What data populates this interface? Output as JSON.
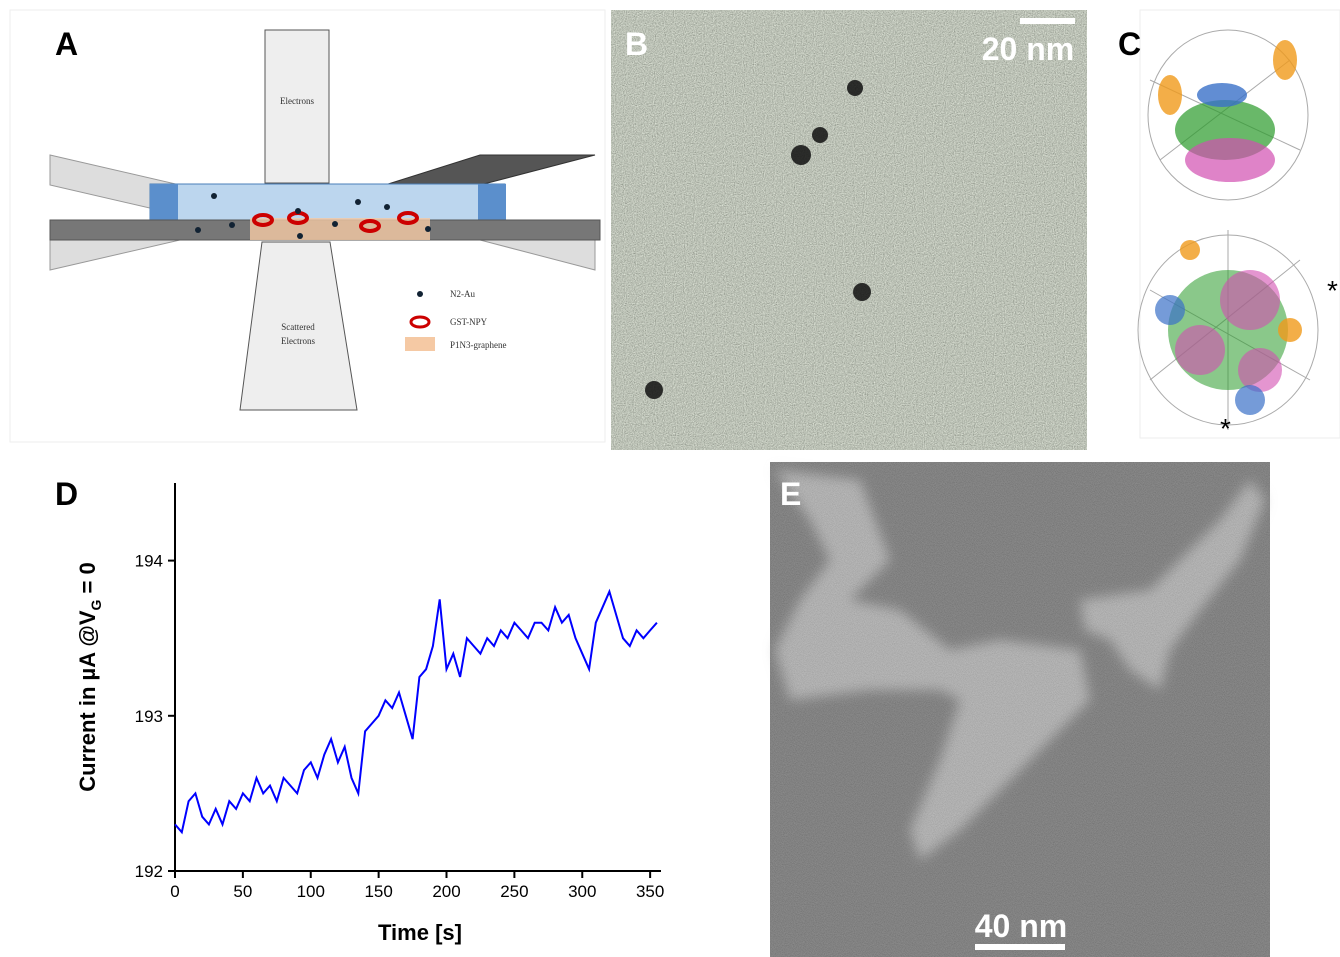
{
  "panels": {
    "A": {
      "label": "A",
      "top_box": "Electrons",
      "bottom_box": [
        "Scattered",
        "Electrons"
      ],
      "legend": [
        "N2-Au",
        "GST-NPY",
        "P1N3-graphene"
      ]
    },
    "B": {
      "label": "B",
      "scale_bar": "20 nm"
    },
    "C": {
      "label": "C",
      "markers": [
        "*",
        "*"
      ]
    },
    "D": {
      "label": "D"
    },
    "E": {
      "label": "E",
      "scale_bar": "40 nm"
    }
  },
  "chart_data": {
    "type": "line",
    "x_label": "Time [s]",
    "y_label": {
      "text": "Current in µA @V",
      "subscript": "G",
      "tail": " = 0"
    },
    "color": "#0000ff",
    "x": [
      0,
      5,
      10,
      15,
      20,
      25,
      30,
      35,
      40,
      45,
      50,
      55,
      60,
      65,
      70,
      75,
      80,
      85,
      90,
      95,
      100,
      105,
      110,
      115,
      120,
      125,
      130,
      135,
      140,
      145,
      150,
      155,
      160,
      165,
      170,
      175,
      180,
      185,
      190,
      195,
      200,
      205,
      210,
      215,
      220,
      225,
      230,
      235,
      240,
      245,
      250,
      255,
      260,
      265,
      270,
      275,
      280,
      285,
      290,
      295,
      300,
      305,
      310,
      315,
      320,
      325,
      330,
      335,
      340,
      345,
      350,
      355
    ],
    "values": [
      192.3,
      192.25,
      192.45,
      192.5,
      192.35,
      192.3,
      192.4,
      192.3,
      192.45,
      192.4,
      192.5,
      192.45,
      192.6,
      192.5,
      192.55,
      192.45,
      192.6,
      192.55,
      192.5,
      192.65,
      192.7,
      192.6,
      192.75,
      192.85,
      192.7,
      192.8,
      192.6,
      192.5,
      192.9,
      192.95,
      193.0,
      193.1,
      193.05,
      193.15,
      193.0,
      192.85,
      193.25,
      193.3,
      193.45,
      193.75,
      193.3,
      193.4,
      193.25,
      193.5,
      193.45,
      193.4,
      193.5,
      193.45,
      193.55,
      193.5,
      193.6,
      193.55,
      193.5,
      193.6,
      193.6,
      193.55,
      193.7,
      193.6,
      193.65,
      193.5,
      193.4,
      193.3,
      193.6,
      193.7,
      193.8,
      193.65,
      193.5,
      193.45,
      193.55,
      193.5,
      193.55,
      193.6
    ],
    "xlim": [
      0,
      358
    ],
    "xticks": [
      0,
      50,
      100,
      150,
      200,
      250,
      300,
      350
    ],
    "ylim": [
      192,
      194.5
    ],
    "yticks": [
      192,
      193,
      194
    ]
  }
}
